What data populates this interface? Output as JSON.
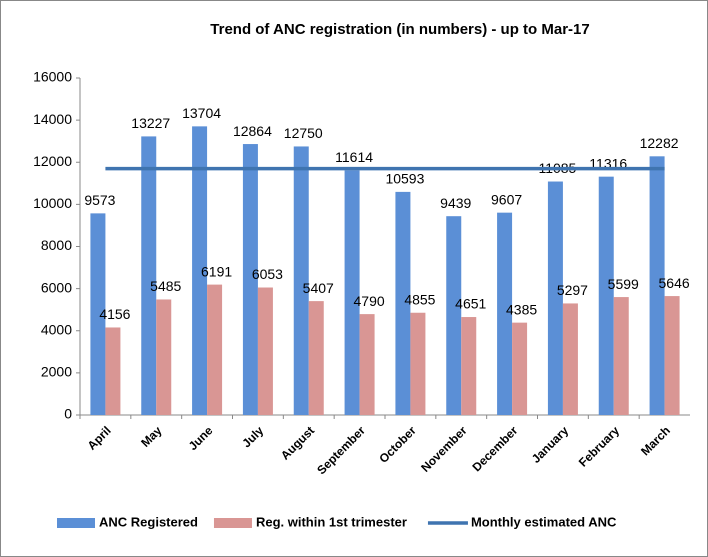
{
  "chart_data": {
    "type": "bar",
    "title": "Trend of ANC registration (in numbers) - up to Mar-17",
    "categories": [
      "April",
      "May",
      "June",
      "July",
      "August",
      "September",
      "October",
      "November",
      "December",
      "January",
      "February",
      "March"
    ],
    "series": [
      {
        "name": "ANC Registered",
        "color": "#5b8fd6",
        "values": [
          9573,
          13227,
          13704,
          12864,
          12750,
          11614,
          10593,
          9439,
          9607,
          11085,
          11316,
          12282
        ]
      },
      {
        "name": "Reg. within 1st trimester",
        "color": "#d99694",
        "values": [
          4156,
          5485,
          6191,
          6053,
          5407,
          4790,
          4855,
          4651,
          4385,
          5297,
          5599,
          5646
        ]
      },
      {
        "name": "Monthly estimated ANC",
        "color": "#3f74b0",
        "type": "line",
        "values": [
          11700,
          11700,
          11700,
          11700,
          11700,
          11700,
          11700,
          11700,
          11700,
          11700,
          11700,
          11700
        ]
      }
    ],
    "ylim": [
      0,
      16000
    ],
    "yticks": [
      0,
      2000,
      4000,
      6000,
      8000,
      10000,
      12000,
      14000,
      16000
    ],
    "grid": false,
    "legend": "bottom"
  }
}
